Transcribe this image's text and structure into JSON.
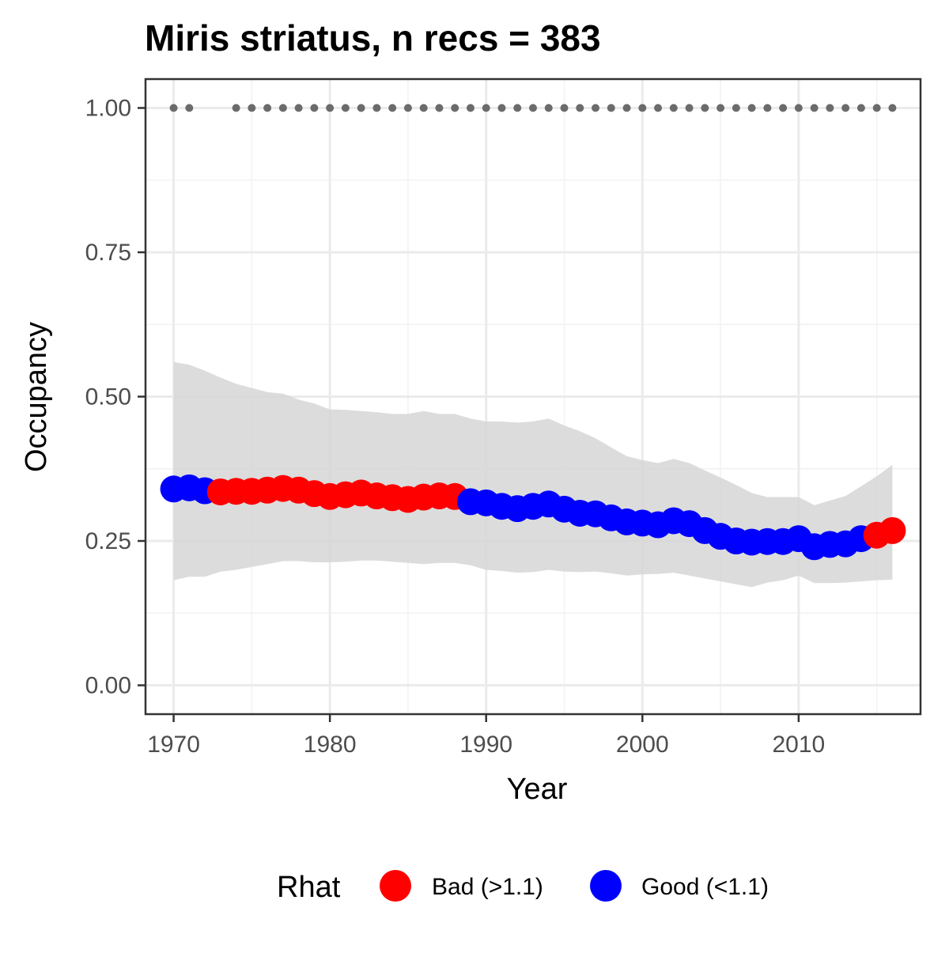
{
  "chart_data": {
    "type": "scatter",
    "title": "Miris striatus, n recs = 383",
    "xlabel": "Year",
    "ylabel": "Occupancy",
    "xlim": [
      1968.2,
      2017.8
    ],
    "ylim": [
      -0.05,
      1.05
    ],
    "x_ticks": [
      1970,
      1980,
      1990,
      2000,
      2010
    ],
    "x_tick_labels": [
      "1970",
      "1980",
      "1990",
      "2000",
      "2010"
    ],
    "y_ticks": [
      0,
      0.25,
      0.5,
      0.75,
      1.0
    ],
    "y_tick_labels": [
      "0.00",
      "0.25",
      "0.50",
      "0.75",
      "1.00"
    ],
    "grid": true,
    "legend": {
      "title": "Rhat",
      "position": "bottom",
      "entries": [
        {
          "label": "Bad (>1.1)",
          "color": "#ff0000"
        },
        {
          "label": "Good (<1.1)",
          "color": "#0000ff"
        }
      ]
    },
    "colors": {
      "bad": "#ff0000",
      "good": "#0000ff",
      "ribbon": "#d6d6d6",
      "record_dots": "#6b6b6b"
    },
    "records_years": [
      1970,
      1971,
      1974,
      1975,
      1976,
      1977,
      1978,
      1979,
      1980,
      1981,
      1982,
      1983,
      1984,
      1985,
      1986,
      1987,
      1988,
      1989,
      1990,
      1991,
      1992,
      1993,
      1994,
      1995,
      1996,
      1997,
      1998,
      1999,
      2000,
      2001,
      2002,
      2003,
      2004,
      2005,
      2006,
      2007,
      2008,
      2009,
      2010,
      2011,
      2012,
      2013,
      2014,
      2015,
      2016
    ],
    "records_y": 1.0,
    "series": [
      {
        "name": "Occupancy",
        "x": [
          1970,
          1971,
          1972,
          1973,
          1974,
          1975,
          1976,
          1977,
          1978,
          1979,
          1980,
          1981,
          1982,
          1983,
          1984,
          1985,
          1986,
          1987,
          1988,
          1989,
          1990,
          1991,
          1992,
          1993,
          1994,
          1995,
          1996,
          1997,
          1998,
          1999,
          2000,
          2001,
          2002,
          2003,
          2004,
          2005,
          2006,
          2007,
          2008,
          2009,
          2010,
          2011,
          2012,
          2013,
          2014,
          2015,
          2016
        ],
        "y": [
          0.34,
          0.342,
          0.337,
          0.335,
          0.336,
          0.336,
          0.338,
          0.341,
          0.338,
          0.332,
          0.327,
          0.33,
          0.333,
          0.328,
          0.325,
          0.322,
          0.326,
          0.328,
          0.327,
          0.318,
          0.316,
          0.31,
          0.306,
          0.31,
          0.314,
          0.305,
          0.298,
          0.297,
          0.29,
          0.283,
          0.281,
          0.278,
          0.285,
          0.28,
          0.268,
          0.258,
          0.25,
          0.248,
          0.249,
          0.249,
          0.254,
          0.24,
          0.244,
          0.245,
          0.254,
          0.26,
          0.268
        ],
        "rhat": [
          "good",
          "good",
          "good",
          "bad",
          "bad",
          "bad",
          "bad",
          "bad",
          "bad",
          "bad",
          "bad",
          "bad",
          "bad",
          "bad",
          "bad",
          "bad",
          "bad",
          "bad",
          "bad",
          "good",
          "good",
          "good",
          "good",
          "good",
          "good",
          "good",
          "good",
          "good",
          "good",
          "good",
          "good",
          "good",
          "good",
          "good",
          "good",
          "good",
          "good",
          "good",
          "good",
          "good",
          "good",
          "good",
          "good",
          "good",
          "good",
          "bad",
          "bad"
        ],
        "lower": [
          0.182,
          0.188,
          0.188,
          0.197,
          0.2,
          0.205,
          0.21,
          0.215,
          0.215,
          0.213,
          0.213,
          0.214,
          0.216,
          0.216,
          0.214,
          0.212,
          0.21,
          0.212,
          0.212,
          0.208,
          0.2,
          0.198,
          0.195,
          0.196,
          0.2,
          0.197,
          0.196,
          0.197,
          0.194,
          0.19,
          0.192,
          0.193,
          0.195,
          0.19,
          0.185,
          0.18,
          0.175,
          0.17,
          0.178,
          0.182,
          0.19,
          0.177,
          0.177,
          0.178,
          0.18,
          0.182,
          0.183
        ],
        "upper": [
          0.56,
          0.555,
          0.545,
          0.533,
          0.522,
          0.515,
          0.508,
          0.505,
          0.495,
          0.488,
          0.478,
          0.477,
          0.475,
          0.473,
          0.47,
          0.47,
          0.475,
          0.47,
          0.47,
          0.462,
          0.457,
          0.457,
          0.455,
          0.457,
          0.462,
          0.45,
          0.44,
          0.428,
          0.412,
          0.397,
          0.39,
          0.385,
          0.392,
          0.385,
          0.372,
          0.36,
          0.347,
          0.333,
          0.326,
          0.326,
          0.326,
          0.312,
          0.32,
          0.328,
          0.345,
          0.362,
          0.382
        ]
      }
    ]
  }
}
